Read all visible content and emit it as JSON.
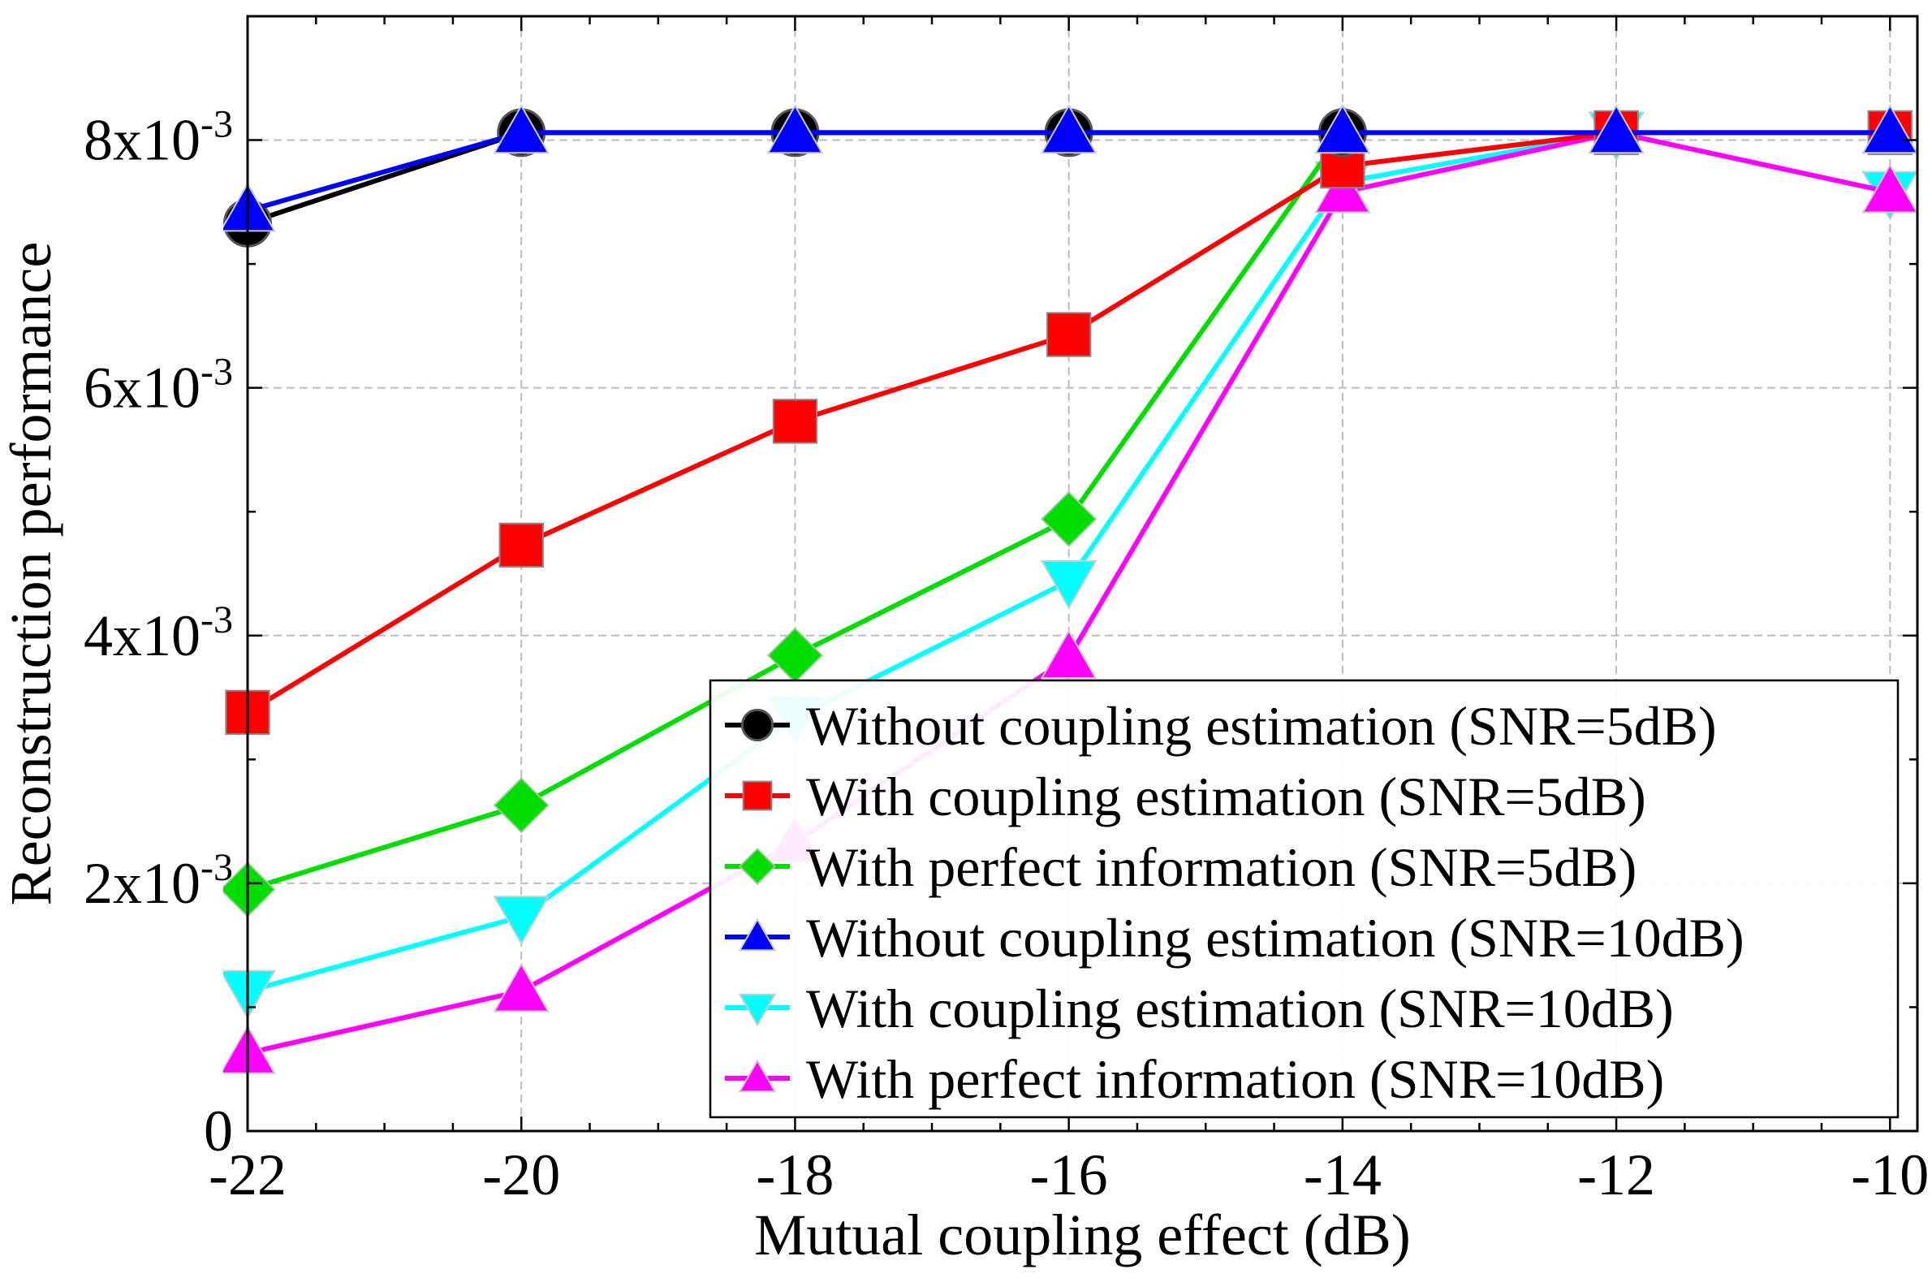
{
  "chart_data": {
    "type": "line",
    "xlabel": "Mutual coupling effect (dB)",
    "ylabel": "Reconstruction performance",
    "x": [
      -22,
      -20,
      -18,
      -16,
      -14,
      -12,
      -10
    ],
    "xlim": [
      -22,
      -9.8
    ],
    "ylim": [
      0,
      0.009
    ],
    "xticks": [
      -22,
      -20,
      -18,
      -16,
      -14,
      -12,
      -10
    ],
    "xtick_labels": [
      "-22",
      "-20",
      "-18",
      "-16",
      "-14",
      "-12",
      "-10"
    ],
    "yticks": [
      0,
      0.002,
      0.004,
      0.006,
      0.008
    ],
    "ytick_labels": [
      {
        "base": "0",
        "exp": ""
      },
      {
        "base": "2x10",
        "exp": "-3"
      },
      {
        "base": "4x10",
        "exp": "-3"
      },
      {
        "base": "6x10",
        "exp": "-3"
      },
      {
        "base": "8x10",
        "exp": "-3"
      }
    ],
    "grid": true,
    "legend_position": "bottom-right",
    "series": [
      {
        "name": "Without coupling estimation (SNR=5dB)",
        "color": "#000000",
        "marker": "circle",
        "values": [
          0.00733,
          0.00806,
          0.00806,
          0.00806,
          0.00806,
          null,
          null
        ]
      },
      {
        "name": "With coupling estimation (SNR=5dB)",
        "color": "#ff0000",
        "marker": "square",
        "values": [
          0.00338,
          0.00473,
          0.00573,
          0.00643,
          0.00779,
          0.00806,
          0.00806
        ]
      },
      {
        "name": "With perfect information (SNR=5dB)",
        "color": "#00dd00",
        "marker": "diamond",
        "values": [
          0.00195,
          0.00263,
          0.00384,
          0.00494,
          0.00806,
          null,
          null
        ]
      },
      {
        "name": "Without coupling estimation (SNR=10dB)",
        "color": "#0000ff",
        "marker": "triangle-up",
        "values": [
          0.00743,
          0.00806,
          0.00806,
          0.00806,
          0.00806,
          0.00806,
          0.00806
        ]
      },
      {
        "name": "With coupling estimation (SNR=10dB)",
        "color": "#00ffff",
        "marker": "triangle-down",
        "values": [
          0.00113,
          0.00173,
          0.00334,
          0.00444,
          0.00766,
          0.00806,
          0.00758
        ]
      },
      {
        "name": "With perfect information (SNR=10dB)",
        "color": "#ff00ff",
        "marker": "triangle-up",
        "values": [
          0.00063,
          0.00113,
          0.00233,
          0.00382,
          0.00758,
          0.00806,
          0.00758
        ]
      }
    ]
  }
}
